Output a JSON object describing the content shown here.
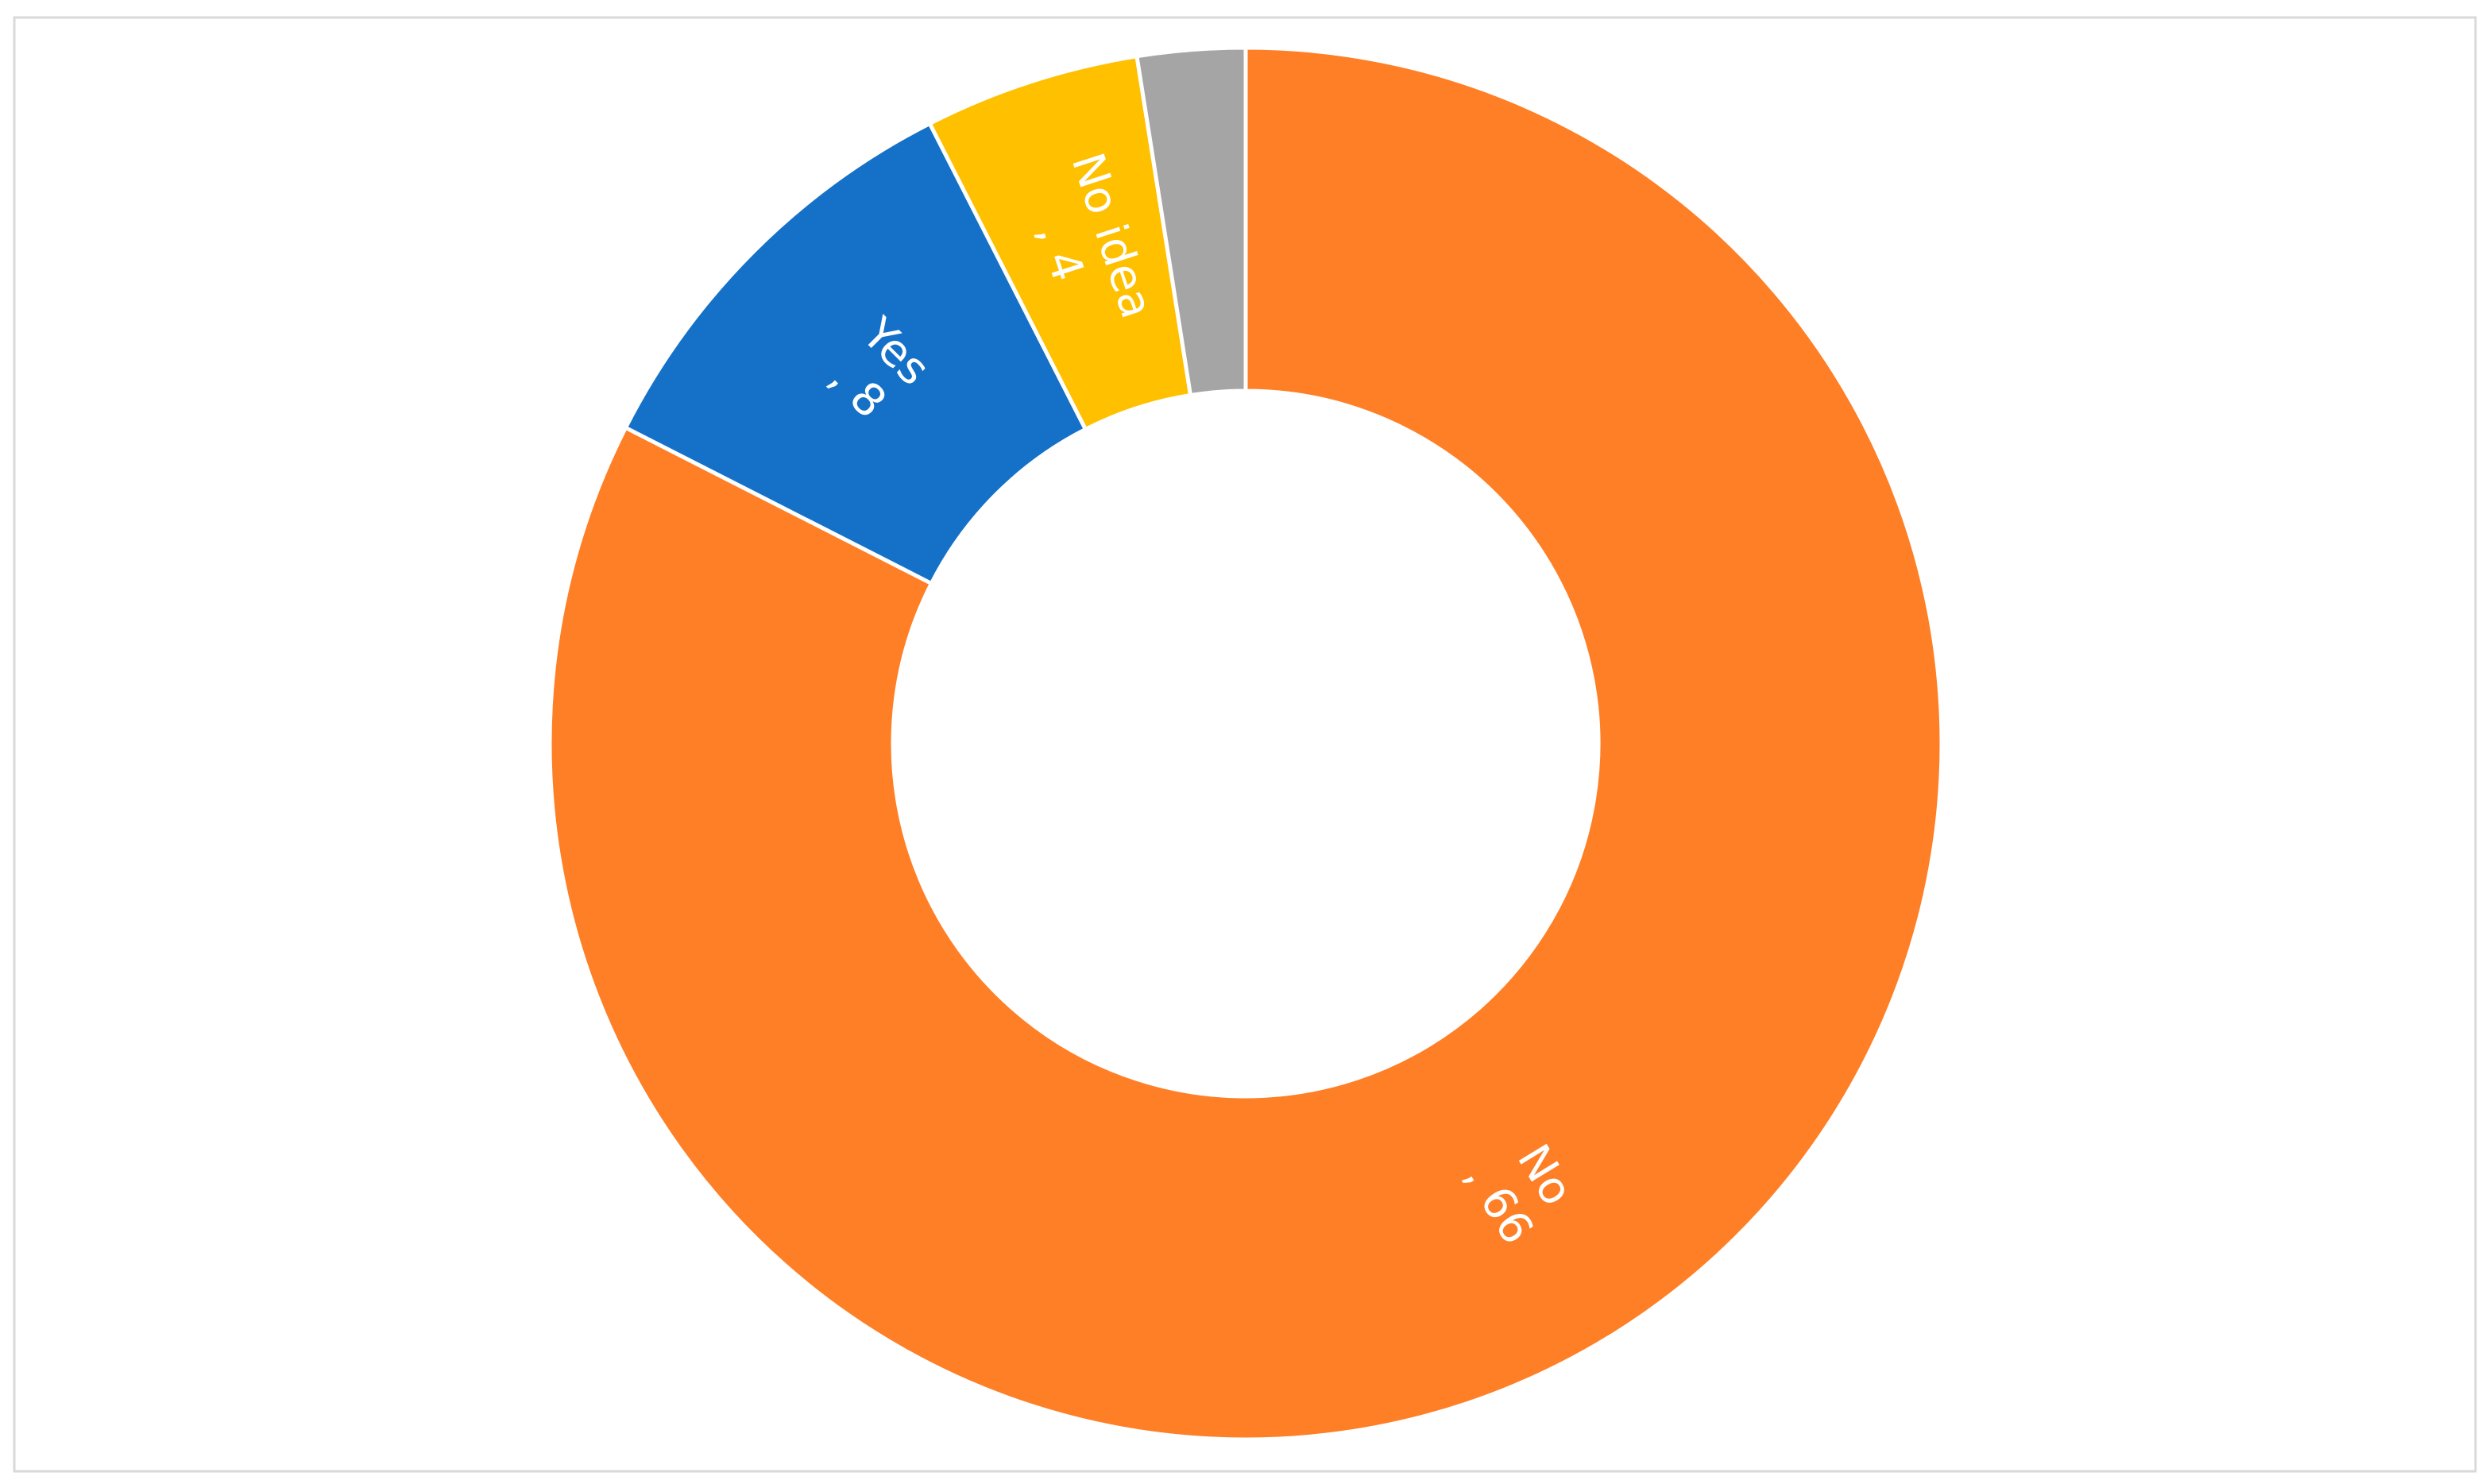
{
  "chart_data": {
    "type": "donut",
    "categories": [
      "No",
      "Yes",
      "No idea",
      null
    ],
    "values": [
      66,
      8,
      4,
      2
    ],
    "value_labels": [
      ", 66",
      ", 8",
      ", 4",
      null
    ],
    "colors": [
      "#fe7f26",
      "#1571c8",
      "#ffc000",
      "#a5a5a5"
    ]
  }
}
